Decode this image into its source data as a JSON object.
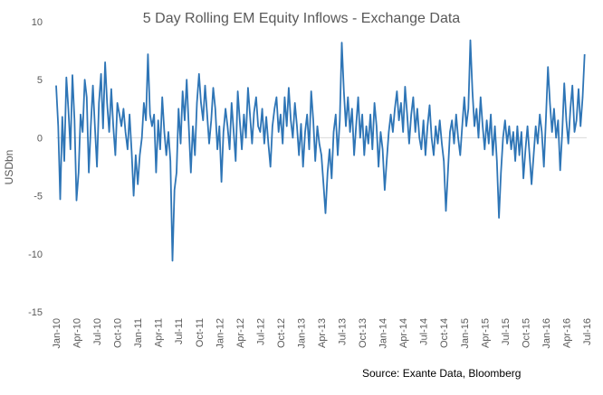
{
  "chart_data": {
    "type": "line",
    "title": "5 Day Rolling  EM Equity Inflows  - Exchange  Data",
    "ylabel": "USDbn",
    "xlabel": "",
    "ylim": [
      -15,
      10
    ],
    "y_ticks": [
      "10",
      "5",
      "0",
      "-5",
      "-10",
      "-15"
    ],
    "x_ticks": [
      "Jan-10",
      "Apr-10",
      "Jul-10",
      "Oct-10",
      "Jan-11",
      "Apr-11",
      "Jul-11",
      "Oct-11",
      "Jan-12",
      "Apr-12",
      "Jul-12",
      "Oct-12",
      "Jan-13",
      "Apr-13",
      "Jul-13",
      "Oct-13",
      "Jan-14",
      "Apr-14",
      "Jul-14",
      "Oct-14",
      "Jan-15",
      "Apr-15",
      "Jul-15",
      "Oct-15",
      "Jan-16",
      "Apr-16",
      "Jul-16"
    ],
    "grid": false,
    "zero_line": true,
    "line_color": "#2E75B6",
    "source": "Source: Exante Data, Bloomberg",
    "series": [
      {
        "name": "",
        "points": [
          [
            0.0,
            4.5
          ],
          [
            0.1,
            1.0
          ],
          [
            0.2,
            -5.3
          ],
          [
            0.3,
            1.8
          ],
          [
            0.4,
            -2.0
          ],
          [
            0.5,
            5.2
          ],
          [
            0.6,
            2.5
          ],
          [
            0.7,
            -1.0
          ],
          [
            0.8,
            5.4
          ],
          [
            0.9,
            1.5
          ],
          [
            1.0,
            -5.4
          ],
          [
            1.1,
            -3.0
          ],
          [
            1.2,
            2.0
          ],
          [
            1.3,
            0.5
          ],
          [
            1.4,
            5.0
          ],
          [
            1.5,
            3.5
          ],
          [
            1.6,
            -3.0
          ],
          [
            1.7,
            1.0
          ],
          [
            1.8,
            4.5
          ],
          [
            1.9,
            1.0
          ],
          [
            2.0,
            -2.5
          ],
          [
            2.1,
            3.0
          ],
          [
            2.2,
            5.5
          ],
          [
            2.3,
            0.8
          ],
          [
            2.4,
            6.5
          ],
          [
            2.5,
            3.0
          ],
          [
            2.6,
            0.5
          ],
          [
            2.7,
            4.2
          ],
          [
            2.8,
            1.0
          ],
          [
            2.9,
            -1.5
          ],
          [
            3.0,
            3.0
          ],
          [
            3.1,
            2.0
          ],
          [
            3.2,
            1.0
          ],
          [
            3.3,
            2.5
          ],
          [
            3.4,
            0.5
          ],
          [
            3.5,
            -1.0
          ],
          [
            3.6,
            2.0
          ],
          [
            3.7,
            -1.2
          ],
          [
            3.8,
            -5.0
          ],
          [
            3.9,
            -1.5
          ],
          [
            4.0,
            -4.0
          ],
          [
            4.1,
            -1.5
          ],
          [
            4.2,
            0.0
          ],
          [
            4.3,
            3.0
          ],
          [
            4.4,
            1.5
          ],
          [
            4.5,
            7.2
          ],
          [
            4.6,
            2.0
          ],
          [
            4.7,
            1.0
          ],
          [
            4.8,
            2.0
          ],
          [
            4.9,
            -3.0
          ],
          [
            5.0,
            1.5
          ],
          [
            5.1,
            -1.0
          ],
          [
            5.2,
            3.5
          ],
          [
            5.3,
            0.5
          ],
          [
            5.4,
            -1.5
          ],
          [
            5.5,
            0.5
          ],
          [
            5.6,
            -2.0
          ],
          [
            5.7,
            -10.6
          ],
          [
            5.8,
            -4.5
          ],
          [
            5.9,
            -3.0
          ],
          [
            6.0,
            2.5
          ],
          [
            6.1,
            -0.5
          ],
          [
            6.2,
            4.0
          ],
          [
            6.3,
            1.5
          ],
          [
            6.4,
            5.0
          ],
          [
            6.5,
            1.0
          ],
          [
            6.6,
            -3.0
          ],
          [
            6.7,
            1.0
          ],
          [
            6.8,
            -1.5
          ],
          [
            6.9,
            3.0
          ],
          [
            7.0,
            5.5
          ],
          [
            7.1,
            3.0
          ],
          [
            7.2,
            1.5
          ],
          [
            7.3,
            4.5
          ],
          [
            7.4,
            2.0
          ],
          [
            7.5,
            -0.5
          ],
          [
            7.6,
            1.5
          ],
          [
            7.7,
            4.3
          ],
          [
            7.8,
            2.5
          ],
          [
            7.9,
            -1.0
          ],
          [
            8.0,
            1.0
          ],
          [
            8.1,
            -3.8
          ],
          [
            8.2,
            0.5
          ],
          [
            8.3,
            2.5
          ],
          [
            8.4,
            1.0
          ],
          [
            8.5,
            -1.0
          ],
          [
            8.6,
            3.0
          ],
          [
            8.7,
            0.5
          ],
          [
            8.8,
            -2.0
          ],
          [
            8.9,
            4.0
          ],
          [
            9.0,
            1.5
          ],
          [
            9.1,
            -1.0
          ],
          [
            9.2,
            2.0
          ],
          [
            9.3,
            0.0
          ],
          [
            9.4,
            4.3
          ],
          [
            9.5,
            2.0
          ],
          [
            9.6,
            -0.5
          ],
          [
            9.7,
            2.2
          ],
          [
            9.8,
            3.5
          ],
          [
            9.9,
            1.0
          ],
          [
            10.0,
            0.5
          ],
          [
            10.1,
            2.5
          ],
          [
            10.2,
            -0.5
          ],
          [
            10.3,
            1.8
          ],
          [
            10.4,
            -0.5
          ],
          [
            10.5,
            -2.5
          ],
          [
            10.6,
            1.0
          ],
          [
            10.7,
            2.5
          ],
          [
            10.8,
            3.5
          ],
          [
            10.9,
            0.5
          ],
          [
            11.0,
            2.0
          ],
          [
            11.1,
            -0.5
          ],
          [
            11.2,
            3.5
          ],
          [
            11.3,
            1.0
          ],
          [
            11.4,
            4.3
          ],
          [
            11.5,
            1.5
          ],
          [
            11.6,
            0.0
          ],
          [
            11.7,
            3.0
          ],
          [
            11.8,
            1.0
          ],
          [
            11.9,
            -1.5
          ],
          [
            12.0,
            1.2
          ],
          [
            12.1,
            -2.5
          ],
          [
            12.2,
            0.5
          ],
          [
            12.3,
            2.0
          ],
          [
            12.4,
            -1.0
          ],
          [
            12.5,
            4.0
          ],
          [
            12.6,
            1.5
          ],
          [
            12.7,
            -2.0
          ],
          [
            12.8,
            1.0
          ],
          [
            12.9,
            -0.5
          ],
          [
            13.0,
            -1.5
          ],
          [
            13.1,
            -4.0
          ],
          [
            13.2,
            -6.5
          ],
          [
            13.3,
            -3.0
          ],
          [
            13.4,
            -1.0
          ],
          [
            13.5,
            -3.5
          ],
          [
            13.6,
            0.5
          ],
          [
            13.7,
            2.0
          ],
          [
            13.8,
            -1.5
          ],
          [
            13.9,
            1.5
          ],
          [
            14.0,
            8.2
          ],
          [
            14.1,
            4.0
          ],
          [
            14.2,
            1.0
          ],
          [
            14.3,
            3.5
          ],
          [
            14.4,
            0.5
          ],
          [
            14.5,
            2.5
          ],
          [
            14.6,
            -1.5
          ],
          [
            14.7,
            1.0
          ],
          [
            14.8,
            3.5
          ],
          [
            14.9,
            0.0
          ],
          [
            15.0,
            2.0
          ],
          [
            15.1,
            -1.5
          ],
          [
            15.2,
            1.0
          ],
          [
            15.3,
            -0.5
          ],
          [
            15.4,
            2.0
          ],
          [
            15.5,
            -1.0
          ],
          [
            15.6,
            3.0
          ],
          [
            15.7,
            1.0
          ],
          [
            15.8,
            -2.5
          ],
          [
            15.9,
            0.5
          ],
          [
            16.0,
            -1.0
          ],
          [
            16.1,
            -4.5
          ],
          [
            16.2,
            -2.0
          ],
          [
            16.3,
            0.5
          ],
          [
            16.4,
            2.0
          ],
          [
            16.5,
            0.5
          ],
          [
            16.6,
            2.5
          ],
          [
            16.7,
            4.0
          ],
          [
            16.8,
            1.5
          ],
          [
            16.9,
            3.0
          ],
          [
            17.0,
            0.5
          ],
          [
            17.1,
            4.4
          ],
          [
            17.2,
            2.0
          ],
          [
            17.3,
            -0.5
          ],
          [
            17.4,
            2.0
          ],
          [
            17.5,
            3.5
          ],
          [
            17.6,
            0.5
          ],
          [
            17.7,
            2.5
          ],
          [
            17.8,
            0.0
          ],
          [
            17.9,
            -1.0
          ],
          [
            18.0,
            1.5
          ],
          [
            18.1,
            -1.5
          ],
          [
            18.2,
            1.0
          ],
          [
            18.3,
            2.8
          ],
          [
            18.4,
            0.0
          ],
          [
            18.5,
            -1.5
          ],
          [
            18.6,
            1.0
          ],
          [
            18.7,
            -0.5
          ],
          [
            18.8,
            1.5
          ],
          [
            18.9,
            -0.5
          ],
          [
            19.0,
            -2.0
          ],
          [
            19.1,
            -6.3
          ],
          [
            19.2,
            -3.0
          ],
          [
            19.3,
            0.5
          ],
          [
            19.4,
            1.5
          ],
          [
            19.5,
            -0.5
          ],
          [
            19.6,
            2.0
          ],
          [
            19.7,
            0.0
          ],
          [
            19.8,
            -1.5
          ],
          [
            19.9,
            1.0
          ],
          [
            20.0,
            3.5
          ],
          [
            20.1,
            1.0
          ],
          [
            20.2,
            2.5
          ],
          [
            20.3,
            8.4
          ],
          [
            20.4,
            4.0
          ],
          [
            20.5,
            1.0
          ],
          [
            20.6,
            2.5
          ],
          [
            20.7,
            0.0
          ],
          [
            20.8,
            3.5
          ],
          [
            20.9,
            1.0
          ],
          [
            21.0,
            -1.0
          ],
          [
            21.1,
            1.5
          ],
          [
            21.2,
            -0.5
          ],
          [
            21.3,
            2.0
          ],
          [
            21.4,
            -1.5
          ],
          [
            21.5,
            1.0
          ],
          [
            21.6,
            -2.0
          ],
          [
            21.7,
            -6.9
          ],
          [
            21.8,
            -3.0
          ],
          [
            21.9,
            0.0
          ],
          [
            22.0,
            1.5
          ],
          [
            22.1,
            -0.5
          ],
          [
            22.2,
            1.0
          ],
          [
            22.3,
            -1.0
          ],
          [
            22.4,
            0.5
          ],
          [
            22.5,
            -2.0
          ],
          [
            22.6,
            1.0
          ],
          [
            22.7,
            -1.5
          ],
          [
            22.8,
            0.5
          ],
          [
            22.9,
            -3.5
          ],
          [
            23.0,
            -1.0
          ],
          [
            23.1,
            1.0
          ],
          [
            23.2,
            -1.5
          ],
          [
            23.3,
            -4.0
          ],
          [
            23.4,
            -1.5
          ],
          [
            23.5,
            1.0
          ],
          [
            23.6,
            -0.5
          ],
          [
            23.7,
            2.0
          ],
          [
            23.8,
            0.5
          ],
          [
            23.9,
            -2.5
          ],
          [
            24.0,
            1.5
          ],
          [
            24.1,
            6.1
          ],
          [
            24.2,
            3.0
          ],
          [
            24.3,
            0.5
          ],
          [
            24.4,
            2.5
          ],
          [
            24.5,
            0.0
          ],
          [
            24.6,
            1.5
          ],
          [
            24.7,
            -2.8
          ],
          [
            24.8,
            0.5
          ],
          [
            24.9,
            4.7
          ],
          [
            25.0,
            1.5
          ],
          [
            25.1,
            -0.5
          ],
          [
            25.2,
            2.5
          ],
          [
            25.3,
            4.5
          ],
          [
            25.4,
            0.5
          ],
          [
            25.5,
            1.5
          ],
          [
            25.6,
            4.2
          ],
          [
            25.7,
            1.0
          ],
          [
            25.8,
            3.5
          ],
          [
            25.9,
            7.2
          ]
        ]
      }
    ]
  }
}
